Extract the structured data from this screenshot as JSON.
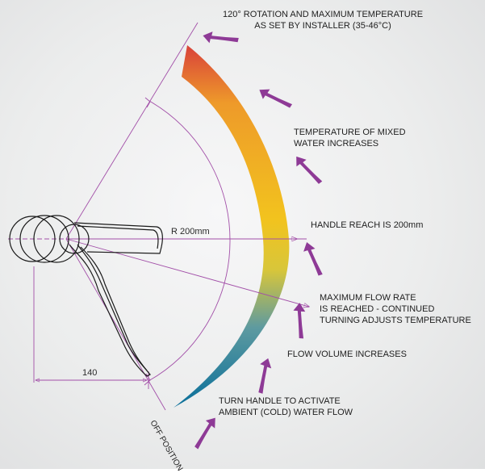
{
  "labels": {
    "rotation_1": "120° ROTATION AND MAXIMUM TEMPERATURE",
    "rotation_2": "AS SET BY INSTALLER (35-46°C)",
    "temp_1": "TEMPERATURE OF MIXED",
    "temp_2": "WATER INCREASES",
    "reach": "HANDLE REACH IS 200mm",
    "maxflow_1": "MAXIMUM FLOW RATE",
    "maxflow_2": "IS REACHED - CONTINUED",
    "maxflow_3": "TURNING ADJUSTS TEMPERATURE",
    "flow_volume": "FLOW VOLUME INCREASES",
    "activate_1": "TURN HANDLE TO ACTIVATE",
    "activate_2": "AMBIENT (COLD) WATER FLOW",
    "off_position": "OFF POSITION"
  },
  "dimensions": {
    "radius": "R 200mm",
    "offset": "140"
  },
  "colors": {
    "arrow_purple": "#8e3a96",
    "dimension_line": "#a24fa8",
    "gradient_top": "#d9413a",
    "gradient_upper": "#ee9a2a",
    "gradient_middle": "#f2c31e",
    "gradient_lower": "#2f90b4",
    "gradient_bottom": "#0a6f9a"
  },
  "icons": [
    "curved-arrow-icon"
  ]
}
